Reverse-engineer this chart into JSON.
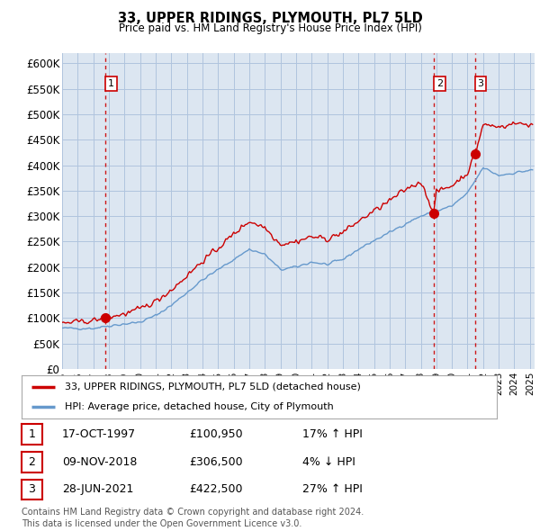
{
  "title": "33, UPPER RIDINGS, PLYMOUTH, PL7 5LD",
  "subtitle": "Price paid vs. HM Land Registry's House Price Index (HPI)",
  "ylim": [
    0,
    620000
  ],
  "yticks": [
    0,
    50000,
    100000,
    150000,
    200000,
    250000,
    300000,
    350000,
    400000,
    450000,
    500000,
    550000,
    600000
  ],
  "xlim_start": 1995.0,
  "xlim_end": 2025.3,
  "background_color": "#ffffff",
  "plot_bg_color": "#dce6f1",
  "grid_color": "#b0c4de",
  "transaction_color": "#cc0000",
  "hpi_color": "#6699cc",
  "sale_marker_color": "#cc0000",
  "dashed_line_color": "#cc0000",
  "transactions": [
    {
      "date": 1997.79,
      "price": 100950,
      "label": "1"
    },
    {
      "date": 2018.85,
      "price": 306500,
      "label": "2"
    },
    {
      "date": 2021.49,
      "price": 422500,
      "label": "3"
    }
  ],
  "legend_entries": [
    "33, UPPER RIDINGS, PLYMOUTH, PL7 5LD (detached house)",
    "HPI: Average price, detached house, City of Plymouth"
  ],
  "table_rows": [
    {
      "num": "1",
      "date": "17-OCT-1997",
      "price": "£100,950",
      "change": "17% ↑ HPI"
    },
    {
      "num": "2",
      "date": "09-NOV-2018",
      "price": "£306,500",
      "change": "4% ↓ HPI"
    },
    {
      "num": "3",
      "date": "28-JUN-2021",
      "price": "£422,500",
      "change": "27% ↑ HPI"
    }
  ],
  "footer": "Contains HM Land Registry data © Crown copyright and database right 2024.\nThis data is licensed under the Open Government Licence v3.0."
}
